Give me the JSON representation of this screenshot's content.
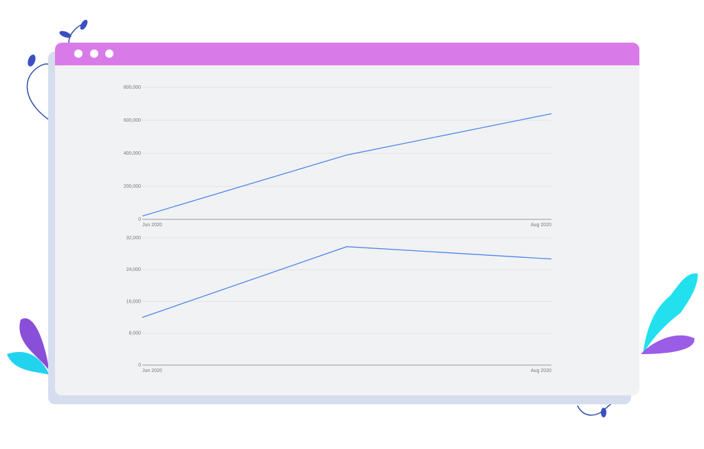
{
  "chart_data": [
    {
      "type": "line",
      "categories": [
        "Jun 2020",
        null,
        "Aug 2020"
      ],
      "series": [
        {
          "color": "#4a86e8",
          "values": [
            20000,
            390000,
            640000
          ]
        }
      ],
      "ylim": [
        0,
        800000
      ],
      "yticks": [
        0,
        {
          "value": 200000,
          "label": "200,000"
        },
        {
          "value": 400000,
          "label": "400,000"
        },
        {
          "value": 600000,
          "label": "600,000"
        },
        {
          "value": 800000,
          "label": "800,000"
        }
      ],
      "grid": true
    },
    {
      "type": "line",
      "categories": [
        "Jun 2020",
        null,
        "Aug 2020"
      ],
      "series": [
        {
          "color": "#4a86e8",
          "values": [
            12000,
            29800,
            26700
          ]
        }
      ],
      "ylim": [
        0,
        32000
      ],
      "yticks": [
        0,
        {
          "value": 8000,
          "label": "8,000"
        },
        {
          "value": 16000,
          "label": "16,000"
        },
        {
          "value": 24000,
          "label": "24,000"
        },
        {
          "value": 32000,
          "label": "32,000"
        }
      ],
      "grid": true
    }
  ]
}
